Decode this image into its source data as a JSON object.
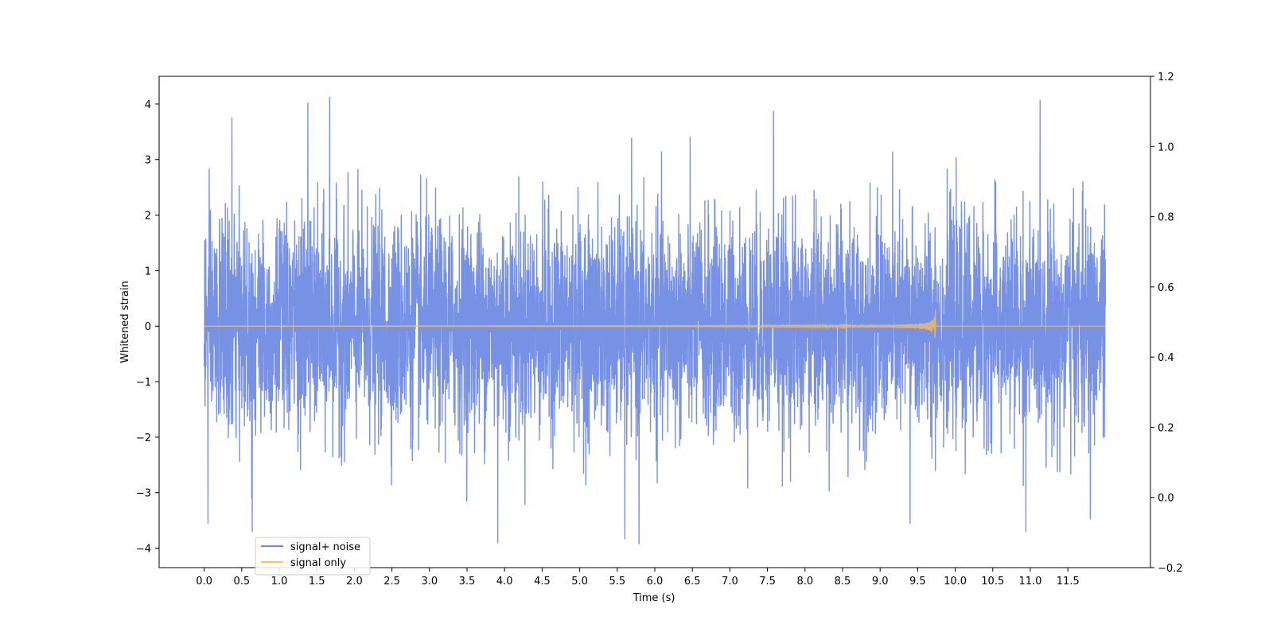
{
  "chart_data": {
    "type": "line",
    "title": "",
    "xlabel": "Time (s)",
    "ylabel": "Whitened strain",
    "y2label": "",
    "xlim": [
      -0.6,
      12.6
    ],
    "ylim": [
      -4.35,
      4.5
    ],
    "y2lim": [
      -0.2,
      1.2
    ],
    "xticks": [
      0.0,
      0.5,
      1.0,
      1.5,
      2.0,
      2.5,
      3.0,
      3.5,
      4.0,
      4.5,
      5.0,
      5.5,
      6.0,
      6.5,
      7.0,
      7.5,
      8.0,
      8.5,
      9.0,
      9.5,
      10.0,
      10.5,
      11.0,
      11.5
    ],
    "xtick_labels": [
      "0.0",
      "0.5",
      "1.0",
      "1.5",
      "2.0",
      "2.5",
      "3.0",
      "3.5",
      "4.0",
      "4.5",
      "5.0",
      "5.5",
      "6.0",
      "6.5",
      "7.0",
      "7.5",
      "8.0",
      "8.5",
      "9.0",
      "9.5",
      "10.0",
      "10.5",
      "11.0",
      "11.5"
    ],
    "yticks": [
      -4,
      -3,
      -2,
      -1,
      0,
      1,
      2,
      3,
      4
    ],
    "ytick_labels": [
      "−4",
      "−3",
      "−2",
      "−1",
      "0",
      "1",
      "2",
      "3",
      "4"
    ],
    "y2ticks": [
      -0.2,
      0.0,
      0.2,
      0.4,
      0.6,
      0.8,
      1.0,
      1.2
    ],
    "y2tick_labels": [
      "−0.2",
      "0.0",
      "0.2",
      "0.4",
      "0.6",
      "0.8",
      "1.0",
      "1.2"
    ],
    "grid": false,
    "legend_position": "lower-left",
    "series": [
      {
        "name": "signal+ noise",
        "color": "#6b88e3",
        "kind": "whitened noise, time 0–12 s, amplitude roughly −3.9 to 4.1",
        "x_range": [
          0.0,
          12.0
        ],
        "envelope_max": 4.1,
        "envelope_min": -3.9,
        "peaks": [
          {
            "x": 0.37,
            "y": 3.75
          },
          {
            "x": 1.38,
            "y": 4.02
          },
          {
            "x": 1.67,
            "y": 4.12
          },
          {
            "x": 7.58,
            "y": 3.87
          },
          {
            "x": 0.64,
            "y": -3.7
          },
          {
            "x": 3.91,
            "y": -3.9
          },
          {
            "x": 5.79,
            "y": -3.92
          },
          {
            "x": 5.6,
            "y": -3.83
          },
          {
            "x": 10.94,
            "y": -3.7
          },
          {
            "x": 0.05,
            "y": -3.55
          },
          {
            "x": 9.4,
            "y": -3.55
          },
          {
            "x": 11.8,
            "y": -3.47
          }
        ]
      },
      {
        "name": "signal only",
        "color": "#ffc04d",
        "kind": "inspiral chirp, flat near 0 until ~8.5 s, growing to peak ~0.48 at 9.74 s, then 0",
        "x_range": [
          0.0,
          12.0
        ],
        "chirp_end": 9.74,
        "peak_amplitude": 0.48
      }
    ]
  }
}
